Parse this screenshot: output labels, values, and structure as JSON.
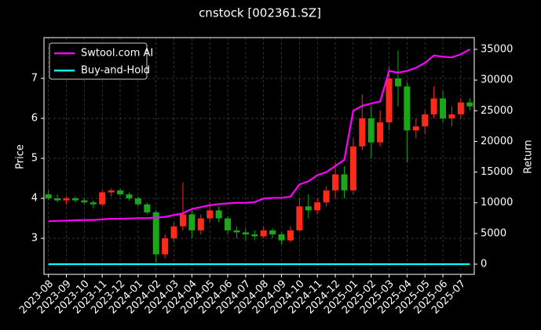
{
  "chart_data": {
    "type": "candlestick",
    "title": "cnstock [002361.SZ]",
    "ylabel": "Price",
    "y2label": "Return",
    "categories": [
      "2023-08",
      null,
      "2023-09",
      null,
      "2023-10",
      null,
      "2023-11",
      null,
      "2023-12",
      null,
      "2024-01",
      null,
      "2024-02",
      null,
      "2024-03",
      null,
      "2024-04",
      null,
      "2024-05",
      null,
      "2024-06",
      null,
      "2024-07",
      null,
      "2024-08",
      null,
      "2024-09",
      null,
      "2024-10",
      null,
      "2024-11",
      null,
      "2024-12",
      null,
      "2025-01",
      null,
      "2025-02",
      null,
      "2025-03",
      null,
      "2025-04",
      null,
      "2025-05",
      null,
      "2025-06",
      null,
      "2025-07",
      null
    ],
    "open": [
      4.1,
      4.0,
      3.95,
      4.0,
      3.95,
      3.9,
      3.85,
      4.15,
      4.2,
      4.1,
      4.0,
      3.85,
      3.65,
      2.6,
      3.0,
      3.3,
      3.6,
      3.2,
      3.5,
      3.7,
      3.5,
      3.2,
      3.15,
      3.1,
      3.05,
      3.2,
      3.1,
      2.95,
      3.2,
      3.8,
      3.7,
      3.9,
      4.2,
      4.6,
      4.2,
      5.3,
      6.0,
      5.4,
      5.9,
      7.0,
      6.8,
      5.7,
      5.8,
      6.1,
      6.5,
      6.0,
      6.1,
      6.4
    ],
    "high": [
      4.2,
      4.1,
      4.05,
      4.05,
      4.0,
      3.95,
      4.2,
      4.25,
      4.25,
      4.15,
      4.05,
      3.9,
      3.7,
      3.1,
      3.4,
      4.4,
      3.7,
      3.6,
      3.9,
      3.8,
      3.55,
      3.3,
      3.25,
      3.2,
      3.3,
      3.25,
      3.15,
      3.3,
      4.0,
      4.1,
      4.0,
      4.3,
      4.9,
      4.8,
      5.5,
      6.6,
      6.3,
      6.2,
      7.3,
      7.7,
      6.9,
      6.0,
      6.2,
      6.8,
      6.7,
      6.3,
      6.5,
      6.5
    ],
    "low": [
      3.95,
      3.9,
      3.85,
      3.9,
      3.85,
      3.75,
      3.8,
      4.05,
      4.05,
      3.95,
      3.8,
      3.6,
      2.4,
      2.5,
      2.9,
      3.2,
      3.0,
      3.1,
      3.4,
      3.4,
      3.1,
      3.0,
      2.95,
      2.95,
      3.0,
      3.0,
      2.85,
      2.9,
      3.2,
      3.5,
      3.6,
      3.8,
      4.0,
      4.0,
      4.1,
      5.2,
      5.0,
      5.3,
      5.7,
      6.3,
      4.9,
      5.5,
      5.6,
      6.0,
      5.9,
      5.8,
      6.0,
      6.2
    ],
    "close": [
      4.0,
      3.95,
      4.0,
      3.95,
      3.9,
      3.85,
      4.15,
      4.2,
      4.1,
      4.0,
      3.85,
      3.65,
      2.6,
      3.0,
      3.3,
      3.6,
      3.2,
      3.5,
      3.7,
      3.5,
      3.2,
      3.15,
      3.1,
      3.05,
      3.2,
      3.1,
      2.95,
      3.2,
      3.8,
      3.7,
      3.9,
      4.2,
      4.6,
      4.2,
      5.3,
      6.0,
      5.4,
      5.9,
      7.0,
      6.8,
      5.7,
      5.8,
      6.1,
      6.5,
      6.0,
      6.1,
      6.4,
      6.3
    ],
    "up_color": "#ff2a1a",
    "down_color": "#1aa81a",
    "series": [
      {
        "name": "Swtool.com AI",
        "color": "#ff00ff",
        "axis": "y2",
        "values": [
          7000,
          7050,
          7100,
          7150,
          7200,
          7200,
          7300,
          7400,
          7400,
          7450,
          7500,
          7500,
          7600,
          7700,
          8000,
          8300,
          9000,
          9300,
          9600,
          9800,
          9900,
          10000,
          10000,
          10100,
          10700,
          10800,
          10800,
          11000,
          13000,
          13500,
          14500,
          15000,
          16000,
          17000,
          25000,
          25800,
          26200,
          26500,
          31500,
          31200,
          31500,
          32000,
          32800,
          34000,
          33800,
          33700,
          34200,
          35000
        ]
      },
      {
        "name": "Buy-and-Hold",
        "color": "#00ffff",
        "axis": "y2",
        "values": [
          0,
          0,
          0,
          0,
          0,
          0,
          0,
          0,
          0,
          0,
          0,
          0,
          0,
          0,
          0,
          0,
          0,
          0,
          0,
          0,
          0,
          0,
          0,
          0,
          0,
          0,
          0,
          0,
          0,
          0,
          0,
          0,
          0,
          0,
          0,
          0,
          0,
          0,
          0,
          0,
          0,
          0,
          0,
          0,
          0,
          0,
          0,
          0
        ]
      }
    ],
    "ylim": [
      2.1,
      8.02
    ],
    "yticks": [
      3,
      4,
      5,
      6,
      7
    ],
    "y2lim": [
      -1660,
      36916
    ],
    "y2ticks": [
      0,
      5000,
      10000,
      15000,
      20000,
      25000,
      30000,
      35000
    ],
    "grid": true,
    "legend": "upper left"
  }
}
